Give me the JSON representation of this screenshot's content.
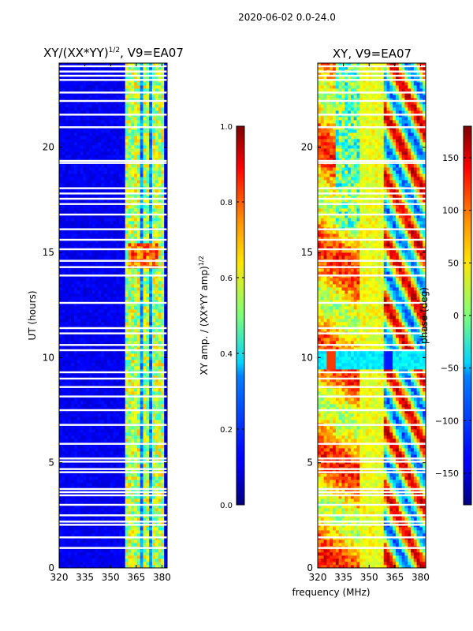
{
  "figure": {
    "suptitle": "2020-06-02 0.0-24.0",
    "shared_xlabel": "frequency (MHz)"
  },
  "chart_data": [
    {
      "type": "heatmap",
      "title_main": "XY/(XX*YY)",
      "title_exp": "1/2",
      "title_suffix": ", V9=EA07",
      "xlabel": "",
      "ylabel": "UT (hours)",
      "xlim": [
        320,
        383
      ],
      "ylim": [
        0,
        24
      ],
      "xticks": [
        320,
        335,
        350,
        365,
        380
      ],
      "yticks": [
        0,
        5,
        10,
        15,
        20
      ],
      "colorbar": {
        "label_main": "XY amp. / (XX*YY amp)",
        "label_exp": "1/2",
        "range": [
          0.0,
          1.0
        ],
        "ticks": [
          "0.0",
          "0.2",
          "0.4",
          "0.6",
          "0.8",
          "1.0"
        ],
        "colormap": "jet"
      },
      "background_value": 0.08,
      "bright_band_mhz": [
        359,
        382
      ],
      "bright_columns_mhz": [
        360,
        363,
        366,
        371,
        376,
        380
      ],
      "high_amplitude_patch": {
        "ut": [
          14.3,
          15.5
        ],
        "mhz": [
          360,
          377
        ],
        "value": 0.9
      }
    },
    {
      "type": "heatmap",
      "title": "XY, V9=EA07",
      "xlabel": "",
      "ylabel": "",
      "xlim": [
        320,
        383
      ],
      "ylim": [
        0,
        24
      ],
      "xticks": [
        320,
        335,
        350,
        365,
        380
      ],
      "yticks": [
        0,
        5,
        10,
        15,
        20
      ],
      "colorbar": {
        "label": "phase (deg)",
        "range": [
          -180,
          180
        ],
        "ticks": [
          "−150",
          "−100",
          "−50",
          "0",
          "50",
          "100",
          "150"
        ],
        "tick_values": [
          -150,
          -100,
          -50,
          0,
          50,
          100,
          150
        ],
        "colormap": "jet"
      },
      "banded_ut_range": [
        9.4,
        10.4
      ]
    }
  ],
  "flagged_ut_hours": [
    0.95,
    1.45,
    2.05,
    2.2,
    2.5,
    3.0,
    3.45,
    3.6,
    3.75,
    4.55,
    4.7,
    5.05,
    5.2,
    5.9,
    6.8,
    7.5,
    8.15,
    8.6,
    9.0,
    9.3,
    10.35,
    10.6,
    11.15,
    11.4,
    12.6,
    13.9,
    14.3,
    14.6,
    15.15,
    15.6,
    16.1,
    16.8,
    17.3,
    17.55,
    17.8,
    18.05,
    19.25,
    19.35,
    20.95,
    21.55,
    22.2,
    22.6,
    23.2,
    23.4,
    23.6,
    23.85
  ]
}
